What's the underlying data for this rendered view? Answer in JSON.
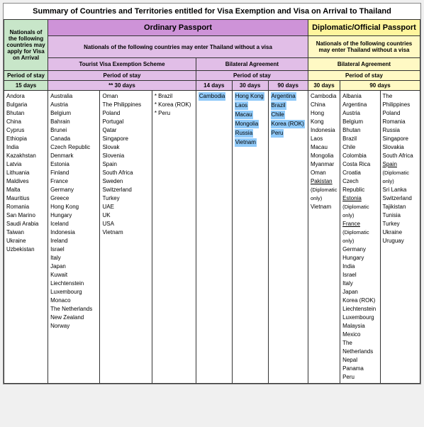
{
  "title": "Summary of Countries and Territories entitled for Visa Exemption and Visa on Arrival to Thailand",
  "headers": {
    "ordinary": "Ordinary Passport",
    "diplomatic": "Diplomatic/Official Passport",
    "voa_label": "Nationals of the following countries may apply for Visa on Arrival",
    "without_visa_ord": "Nationals of the following countries may enter Thailand without a visa",
    "without_visa_dip": "Nationals of the following countries may enter Thailand without a visa",
    "tourist_scheme": "Tourist Visa Exemption Scheme",
    "bilateral": "Bilateral Agreement",
    "period": "Period of stay",
    "d15": "15 days",
    "d30s": "** 30 days",
    "d14": "14 days",
    "d30": "30 days",
    "d90": "90 days"
  },
  "voa": [
    "Andora",
    "Bulgaria",
    "Bhutan",
    "China",
    "Cyprus",
    "Ethiopia",
    "India",
    "Kazakhstan",
    "Latvia",
    "Lithuania",
    "Maldives",
    "Malta",
    "Mauritius",
    "Romania",
    "San Marino",
    "Saudi Arabia",
    "Taiwan",
    "Ukraine",
    "Uzbekistan"
  ],
  "tourist_col1": [
    "Australia",
    "Austria",
    "Belgium",
    "Bahrain",
    "Brunei",
    "Canada",
    "Czech Republic",
    "Denmark",
    "Estonia",
    "Finland",
    "France",
    "Germany",
    "Greece",
    "Hong Kong",
    "Hungary",
    "Iceland",
    "Indonesia",
    "Ireland",
    "Israel",
    "Italy",
    "Japan",
    "Kuwait",
    "Liechtenstein",
    "Luxembourg",
    "Monaco",
    "The Netherlands",
    "New Zealand",
    "Norway"
  ],
  "tourist_col2": [
    "Oman",
    "The Philippines",
    "Poland",
    "Portugal",
    "Qatar",
    "Singapore",
    "Slovak",
    "Slovenia",
    "Spain",
    "South Africa",
    "Sweden",
    "Switzerland",
    "Turkey",
    "UAE",
    "UK",
    "USA",
    "Vietnam"
  ],
  "tourist_col3": [
    "* Brazil",
    "* Korea (ROK)",
    "* Peru"
  ],
  "bi_14": [
    "Cambodia"
  ],
  "bi_30": [
    "Hong Kong",
    "Laos",
    "Macau",
    "Mongolia",
    "Russia",
    "Vietnam"
  ],
  "bi_90": [
    "Argentina",
    "Brazil",
    "Chile",
    "Korea (ROK)",
    "Peru"
  ],
  "dip_30": [
    "Cambodia",
    "China",
    "Hong Kong",
    "Indonesia",
    "Laos",
    "Macau",
    "Mongolia",
    "Myanmar",
    "Oman",
    {
      "t": "Pakistan",
      "u": true
    },
    {
      "t": "(Diplomatic only)",
      "n": true
    },
    "Vietnam"
  ],
  "dip_90a": [
    "Albania",
    "Argentina",
    "Austria",
    "Belgium",
    "Bhutan",
    "Brazil",
    "Chile",
    "Colombia",
    "Costa Rica",
    "Croatia",
    "Czech Republic",
    {
      "t": "Estonia",
      "u": true
    },
    {
      "t": "(Diplomatic only)",
      "n": true
    },
    {
      "t": "France",
      "u": true
    },
    {
      "t": "(Diplomatic only)",
      "n": true
    },
    "Germany",
    "Hungary",
    "India",
    "Israel",
    "Italy",
    "Japan",
    "Korea (ROK)",
    "Liechtenstein",
    "Luxembourg",
    "Malaysia",
    "Mexico",
    "The Netherlands",
    "Nepal",
    "Panama",
    "Peru"
  ],
  "dip_90b": [
    "The Philippines",
    "Poland",
    "Romania",
    "Russia",
    "Singapore",
    "Slovakia",
    "South Africa",
    {
      "t": "Spain",
      "u": true
    },
    {
      "t": "(Diplomatic only)",
      "n": true
    },
    "Sri Lanka",
    "Switzerland",
    "Tajikistan",
    "Tunisia",
    "Turkey",
    "Ukraine",
    "Uruguay"
  ],
  "colors": {
    "green": "#c8e6c9",
    "purple": "#ce93d8",
    "yellow": "#fff59d",
    "lpurple": "#e1bee7",
    "lyellow": "#fff9c4",
    "highlight": "#90caf9"
  }
}
